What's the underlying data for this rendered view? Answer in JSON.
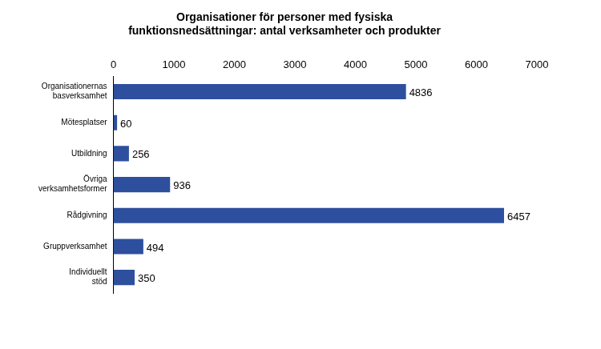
{
  "chart_data": {
    "type": "bar",
    "orientation": "horizontal",
    "title": "Organisationer för personer med fysiska funktionsnedsättningar: antal verksamheter och produkter",
    "categories": [
      "Organisationernas basverksamhet",
      "Mötesplatser",
      "Utbildning",
      "Övriga verksamhetsformer",
      "Rådgivning",
      "Gruppverksamhet",
      "Individuellt stöd"
    ],
    "values": [
      4836,
      60,
      256,
      936,
      6457,
      494,
      350
    ],
    "color": "#2e4f9e",
    "xlim": [
      0,
      7000
    ],
    "xticks": [
      0,
      1000,
      2000,
      3000,
      4000,
      5000,
      6000,
      7000
    ],
    "grid": false,
    "data_labels": true
  }
}
